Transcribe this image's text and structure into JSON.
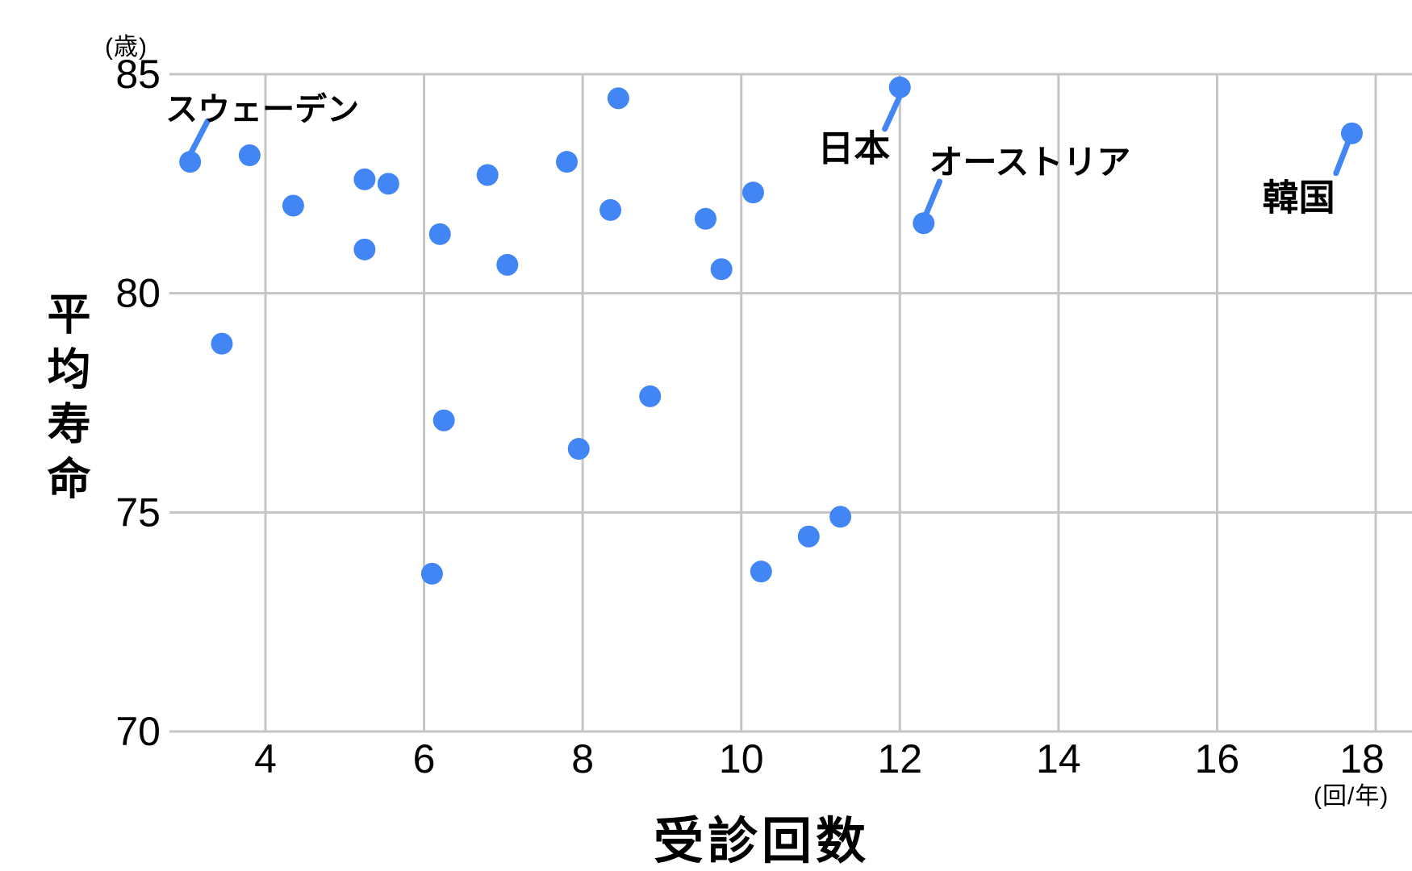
{
  "chart_data": {
    "type": "scatter",
    "title": "",
    "xlabel": "受診回数",
    "ylabel": "平均寿命",
    "x_unit": "(回/年)",
    "y_unit": "(歳)",
    "x_ticks": [
      4,
      6,
      8,
      10,
      12,
      14,
      16,
      18
    ],
    "y_ticks": [
      70,
      75,
      80,
      85
    ],
    "xlim": [
      2.789,
      18.0
    ],
    "ylim": [
      70,
      85
    ],
    "grid": true,
    "legend": "none",
    "point_color": "#4285f4",
    "grid_color": "#c5c5c5",
    "text_color": "#000000",
    "points": [
      {
        "x": 3.05,
        "y": 83.0
      },
      {
        "x": 3.8,
        "y": 83.15
      },
      {
        "x": 4.35,
        "y": 82.0
      },
      {
        "x": 5.25,
        "y": 82.6
      },
      {
        "x": 5.55,
        "y": 82.5
      },
      {
        "x": 5.25,
        "y": 81.0
      },
      {
        "x": 6.2,
        "y": 81.35
      },
      {
        "x": 6.8,
        "y": 82.7
      },
      {
        "x": 7.05,
        "y": 80.65
      },
      {
        "x": 7.8,
        "y": 83.0
      },
      {
        "x": 8.45,
        "y": 84.45
      },
      {
        "x": 8.35,
        "y": 81.9
      },
      {
        "x": 9.55,
        "y": 81.7
      },
      {
        "x": 10.15,
        "y": 82.3
      },
      {
        "x": 9.75,
        "y": 80.55
      },
      {
        "x": 12.0,
        "y": 84.7
      },
      {
        "x": 12.3,
        "y": 81.6
      },
      {
        "x": 3.45,
        "y": 78.85
      },
      {
        "x": 6.25,
        "y": 77.1
      },
      {
        "x": 8.85,
        "y": 77.65
      },
      {
        "x": 7.95,
        "y": 76.45
      },
      {
        "x": 6.1,
        "y": 73.6
      },
      {
        "x": 10.25,
        "y": 73.65
      },
      {
        "x": 10.85,
        "y": 74.45
      },
      {
        "x": 11.25,
        "y": 74.9
      },
      {
        "x": 17.7,
        "y": 83.65
      }
    ],
    "annotations": [
      {
        "text": "スウェーデン",
        "point": {
          "x": 3.05,
          "y": 83.0
        },
        "label_at": {
          "x": 3.96,
          "y": 84.26
        },
        "font_px": 40,
        "line": [
          {
            "x": 3.27,
            "y": 83.93
          },
          {
            "x": 3.06,
            "y": 83.2
          }
        ]
      },
      {
        "text": "日本",
        "point": {
          "x": 12.0,
          "y": 84.7
        },
        "label_at": {
          "x": 11.42,
          "y": 83.38
        },
        "font_px": 45,
        "line": [
          {
            "x": 11.81,
            "y": 83.75
          },
          {
            "x": 12.02,
            "y": 84.58
          }
        ]
      },
      {
        "text": "オーストリア",
        "point": {
          "x": 12.3,
          "y": 81.6
        },
        "label_at": {
          "x": 13.64,
          "y": 83.05
        },
        "font_px": 42,
        "line": [
          {
            "x": 12.5,
            "y": 82.55
          },
          {
            "x": 12.32,
            "y": 81.76
          }
        ]
      },
      {
        "text": "韓国",
        "point": {
          "x": 17.7,
          "y": 83.65
        },
        "label_at": {
          "x": 17.03,
          "y": 82.26
        },
        "font_px": 45,
        "line": [
          {
            "x": 17.5,
            "y": 82.74
          },
          {
            "x": 17.65,
            "y": 83.44
          }
        ]
      }
    ]
  }
}
